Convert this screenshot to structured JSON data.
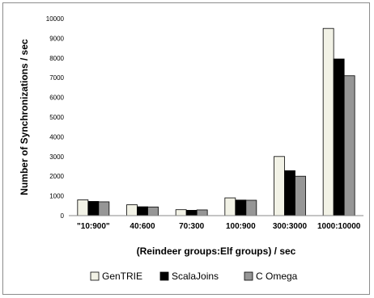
{
  "chart_data": {
    "type": "bar",
    "title": "",
    "xlabel": "(Reindeer groups:Elf groups) / sec",
    "ylabel": "Number of Synchronizations / sec",
    "ylim": [
      0,
      10000
    ],
    "yticks": [
      0,
      1000,
      2000,
      3000,
      4000,
      5000,
      6000,
      7000,
      8000,
      9000,
      10000
    ],
    "grid": false,
    "legend_position": "bottom",
    "categories": [
      "\"10:900\"",
      "40:600",
      "70:300",
      "100:900",
      "300:3000",
      "1000:10000"
    ],
    "series": [
      {
        "name": "GenTRIE",
        "color": "#f2f2e6",
        "values": [
          800,
          550,
          300,
          900,
          3000,
          9500
        ]
      },
      {
        "name": "ScalaJoins",
        "color": "#000000",
        "values": [
          720,
          450,
          270,
          790,
          2280,
          7950
        ]
      },
      {
        "name": "C Omega",
        "color": "#969696",
        "values": [
          700,
          440,
          290,
          780,
          2000,
          7100
        ]
      }
    ]
  }
}
